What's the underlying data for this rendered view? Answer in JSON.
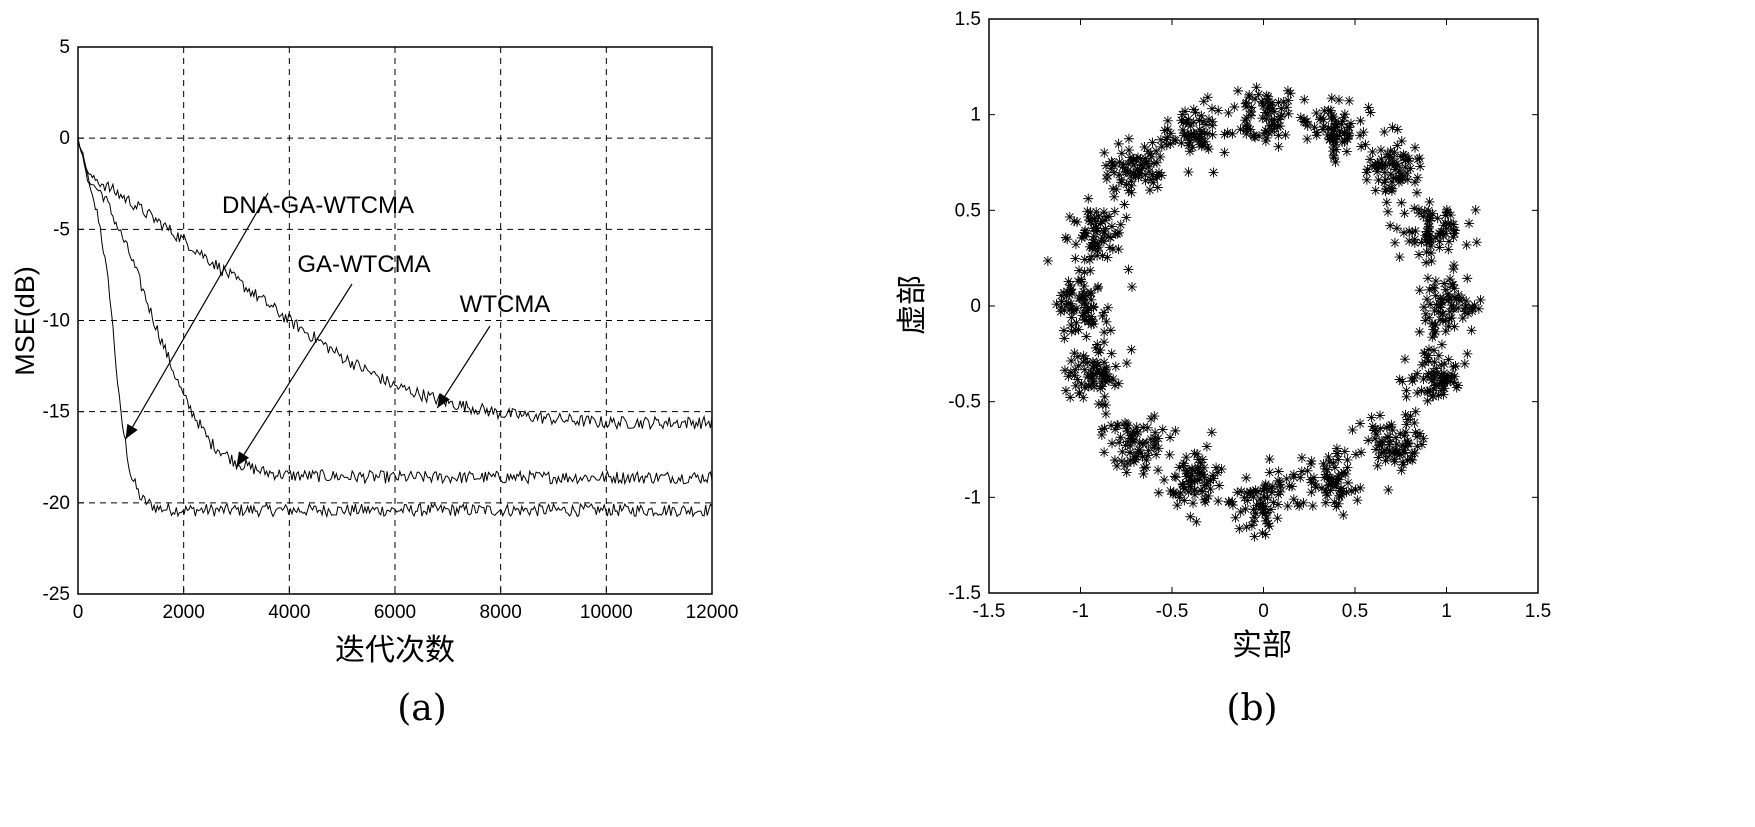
{
  "chart_data": [
    {
      "type": "line",
      "panel_label": "(a)",
      "xlabel": "迭代次数",
      "ylabel": "MSE(dB)",
      "xlim": [
        0,
        12000
      ],
      "ylim": [
        -25,
        5
      ],
      "xticks": [
        "0",
        "2000",
        "4000",
        "6000",
        "8000",
        "10000",
        "12000"
      ],
      "yticks": [
        "5",
        "0",
        "-5",
        "-10",
        "-15",
        "-20",
        "-25"
      ],
      "grid": true,
      "annotations": [
        {
          "text": "DNA-GA-WTCMA",
          "target": [
            900,
            -16.5
          ]
        },
        {
          "text": "GA-WTCMA",
          "target": [
            3000,
            -18.0
          ]
        },
        {
          "text": "WTCMA",
          "target": [
            6800,
            -14.8
          ]
        }
      ],
      "series": [
        {
          "name": "DNA-GA-WTCMA",
          "x": [
            0,
            200,
            400,
            600,
            800,
            1000,
            1200,
            1500,
            2000,
            4000,
            8000,
            12000
          ],
          "y": [
            0,
            -2.5,
            -4.5,
            -8.5,
            -15.0,
            -18.5,
            -19.8,
            -20.3,
            -20.4,
            -20.4,
            -20.4,
            -20.4
          ]
        },
        {
          "name": "GA-WTCMA",
          "x": [
            0,
            200,
            500,
            1000,
            1500,
            2000,
            2500,
            3000,
            3500,
            4000,
            6000,
            8000,
            12000
          ],
          "y": [
            0,
            -2.3,
            -3.2,
            -6.5,
            -10.5,
            -14.2,
            -16.7,
            -17.8,
            -18.3,
            -18.5,
            -18.6,
            -18.6,
            -18.6
          ]
        },
        {
          "name": "WTCMA",
          "x": [
            0,
            200,
            1000,
            2000,
            3000,
            4000,
            5000,
            6000,
            7000,
            8000,
            9000,
            10000,
            12000
          ],
          "y": [
            0,
            -2.0,
            -3.5,
            -5.6,
            -7.8,
            -10.0,
            -12.0,
            -13.6,
            -14.5,
            -15.1,
            -15.4,
            -15.6,
            -15.6
          ]
        }
      ]
    },
    {
      "type": "scatter",
      "panel_label": "(b)",
      "xlabel": "实部",
      "ylabel": "虚部",
      "xlim": [
        -1.5,
        1.5
      ],
      "ylim": [
        -1.5,
        1.5
      ],
      "xticks": [
        "-1.5",
        "-1",
        "-0.5",
        "0",
        "0.5",
        "1",
        "1.5"
      ],
      "yticks": [
        "1.5",
        "1",
        "0.5",
        "0",
        "-0.5",
        "-1",
        "-1.5"
      ],
      "grid": false,
      "marker": "*",
      "cluster_centers": [
        {
          "x": 1.0,
          "y": 0.0
        },
        {
          "x": 0.92,
          "y": 0.38
        },
        {
          "x": 0.71,
          "y": 0.71
        },
        {
          "x": 0.38,
          "y": 0.92
        },
        {
          "x": 0.0,
          "y": 1.0
        },
        {
          "x": -0.38,
          "y": 0.92
        },
        {
          "x": -0.71,
          "y": 0.71
        },
        {
          "x": -0.92,
          "y": 0.38
        },
        {
          "x": -1.0,
          "y": 0.0
        },
        {
          "x": -0.92,
          "y": -0.38
        },
        {
          "x": -0.71,
          "y": -0.71
        },
        {
          "x": -0.38,
          "y": -0.92
        },
        {
          "x": 0.0,
          "y": -1.0
        },
        {
          "x": 0.38,
          "y": -0.92
        },
        {
          "x": 0.71,
          "y": -0.71
        },
        {
          "x": 0.92,
          "y": -0.38
        }
      ],
      "cluster_spread": 0.08,
      "points_per_cluster": 75
    }
  ]
}
